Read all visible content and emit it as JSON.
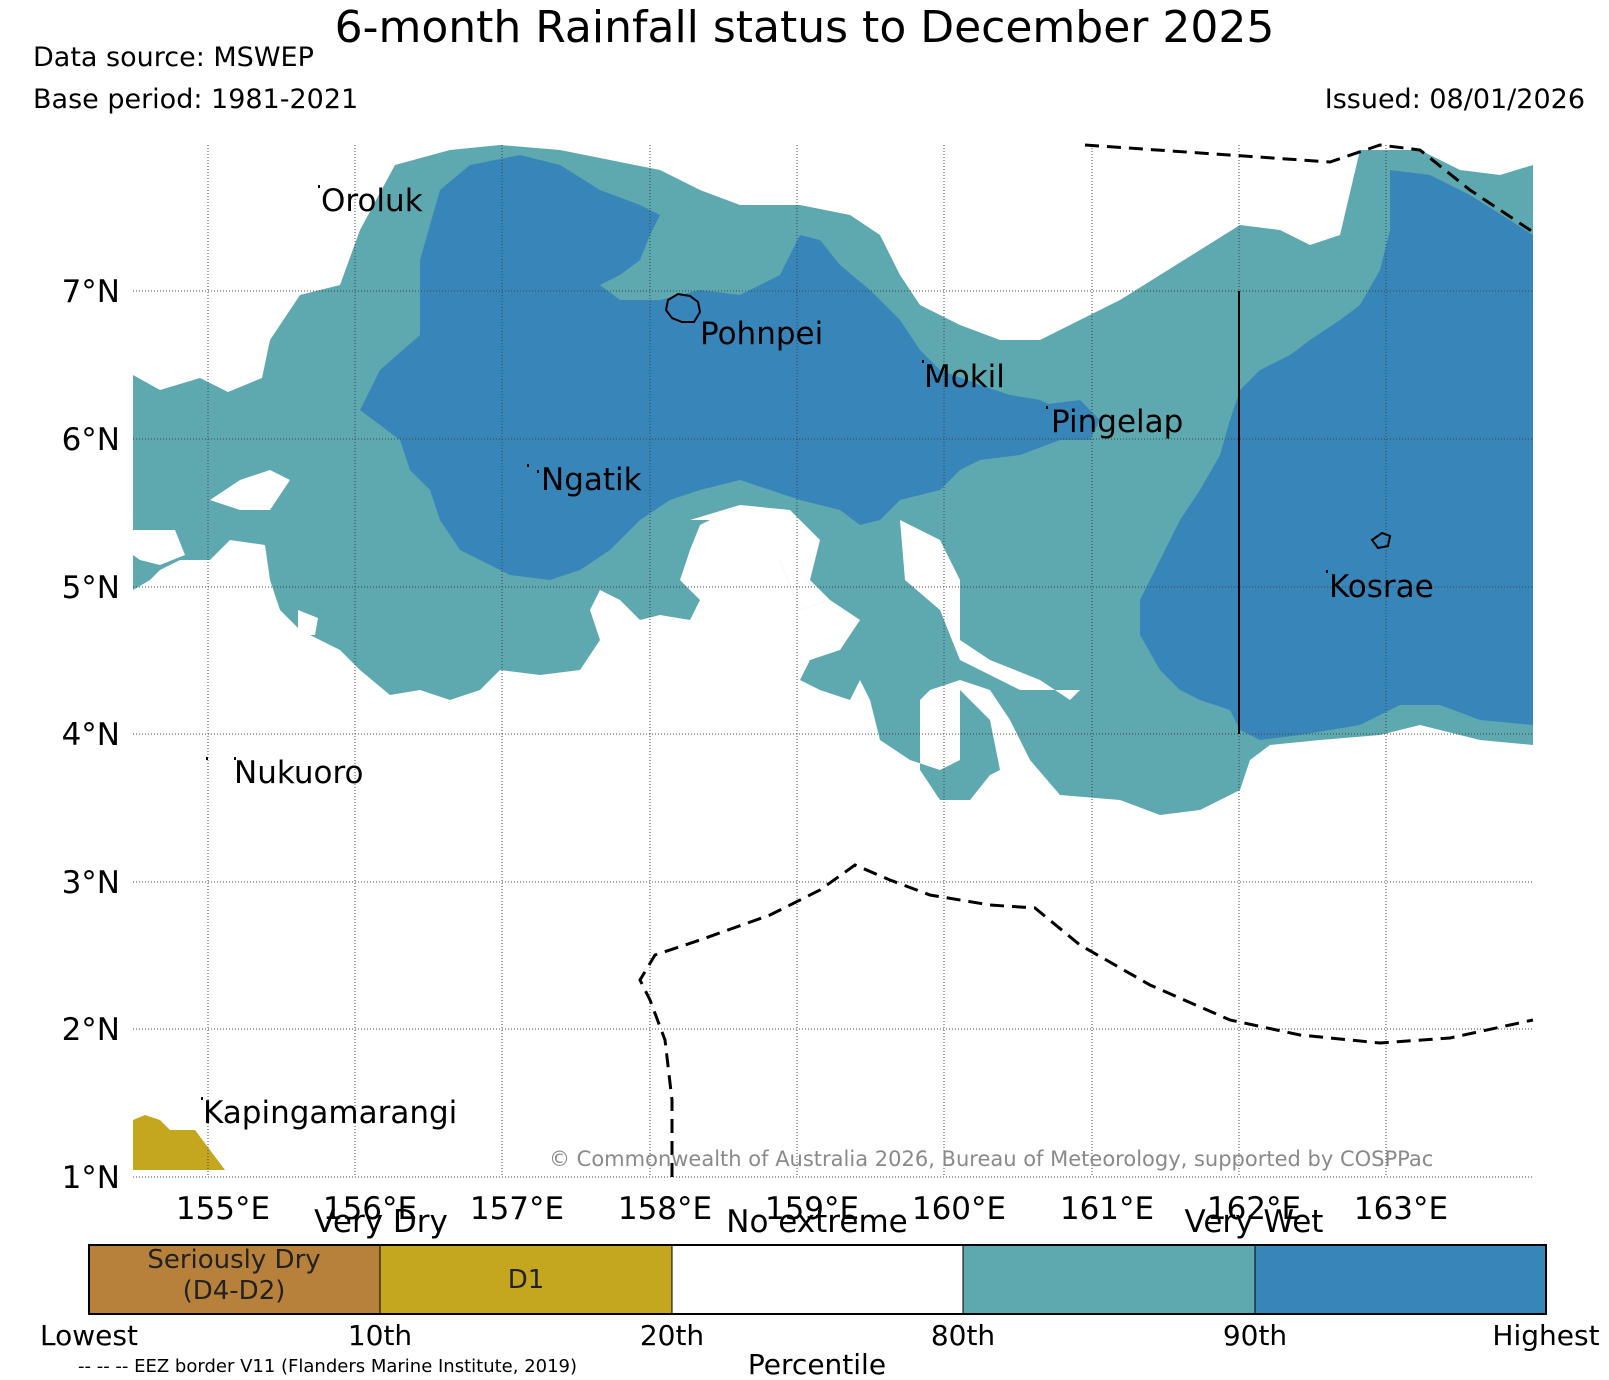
{
  "header": {
    "title": "6-month Rainfall status to December 2025",
    "data_source": "Data source: MSWEP",
    "base_period": "Base period: 1981-2021",
    "issued": "Issued: 08/01/2026"
  },
  "map": {
    "lat_labels": [
      "7°N",
      "6°N",
      "5°N",
      "4°N",
      "3°N",
      "2°N",
      "1°N"
    ],
    "lon_labels": [
      "155°E",
      "156°E",
      "157°E",
      "158°E",
      "159°E",
      "160°E",
      "161°E",
      "162°E",
      "163°E"
    ],
    "places": [
      "Oroluk",
      "Pohnpei",
      "Mokil",
      "Pingelap",
      "Ngatik",
      "Kosrae",
      "Nukuoro",
      "Kapingamarangi"
    ],
    "copyright": "© Commonwealth of Australia 2026, Bureau of Meteorology, supported by COSPPac",
    "colors": {
      "very_wet_90": "#3886b9",
      "very_wet_80": "#5da9af",
      "d1": "#c5a61f",
      "seriously_dry": "#b7813c"
    }
  },
  "legend": {
    "group_labels": {
      "very_dry": "Very Dry",
      "no_extreme": "No extreme",
      "very_wet": "Very Wet"
    },
    "segments": [
      {
        "label_line1": "Seriously Dry",
        "label_line2": "(D4-D2)",
        "color": "#b7813c"
      },
      {
        "label_line1": "D1",
        "label_line2": "",
        "color": "#c5a61f"
      },
      {
        "label_line1": "",
        "label_line2": "",
        "color": "#ffffff"
      },
      {
        "label_line1": "",
        "label_line2": "",
        "color": "#5da9af"
      },
      {
        "label_line1": "",
        "label_line2": "",
        "color": "#3886b9"
      }
    ],
    "ticks": [
      "Lowest",
      "10th",
      "20th",
      "80th",
      "90th",
      "Highest"
    ],
    "axis_label": "Percentile",
    "eez_note": "-- -- -- EEZ border V11 (Flanders Marine Institute, 2019)"
  }
}
